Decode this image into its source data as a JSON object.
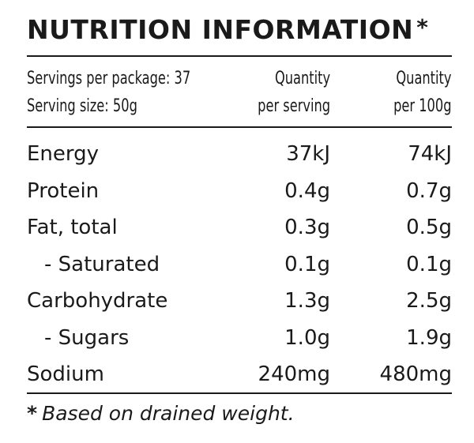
{
  "panel": {
    "title": "NUTRITION INFORMATION",
    "title_marker": "*",
    "header": {
      "servings_line": "Servings per package: 37",
      "serving_size_line": "Serving size: 50g",
      "col1_line1": "Quantity",
      "col1_line2": "per serving",
      "col2_line1": "Quantity",
      "col2_line2": "per 100g"
    },
    "rows": [
      {
        "name": "Energy",
        "per_serving": "37kJ",
        "per_100g": "74kJ"
      },
      {
        "name": "Protein",
        "per_serving": "0.4g",
        "per_100g": "0.7g"
      },
      {
        "name": "Fat, total",
        "per_serving": "0.3g",
        "per_100g": "0.5g"
      },
      {
        "name": "- Saturated",
        "per_serving": "0.1g",
        "per_100g": "0.1g"
      },
      {
        "name": "Carbohydrate",
        "per_serving": "1.3g",
        "per_100g": "2.5g"
      },
      {
        "name": "- Sugars",
        "per_serving": "1.0g",
        "per_100g": "1.9g"
      },
      {
        "name": "Sodium",
        "per_serving": "240mg",
        "per_100g": "480mg"
      }
    ],
    "footnote_marker": "*",
    "footnote": "Based on drained weight."
  }
}
